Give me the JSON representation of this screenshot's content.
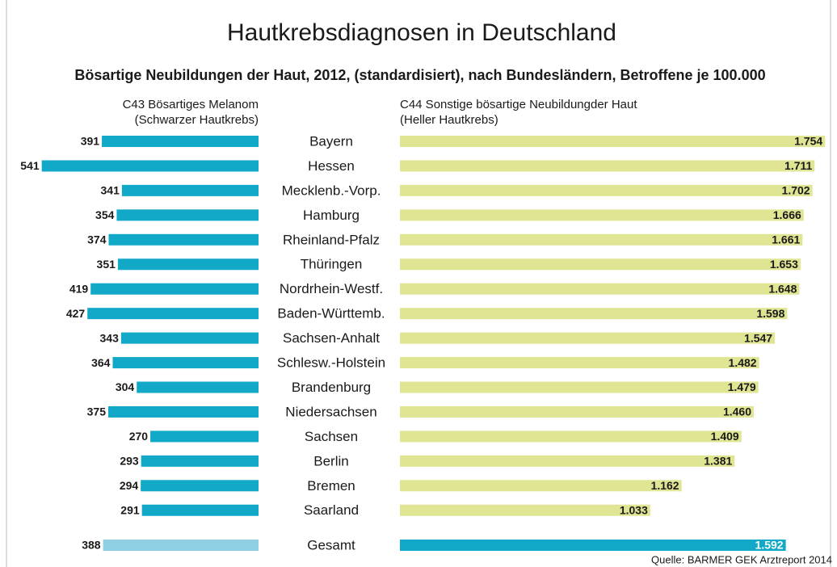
{
  "chart_data": {
    "type": "butterfly-bar",
    "title": "Hautkrebsdiagnosen in Deutschland",
    "subtitle": "Bösartige Neubildungen der Haut, 2012, (standardisiert), nach Bundesländern, Betroffene je 100.000",
    "categories": [
      "Bayern",
      "Hessen",
      "Mecklenb.-Vorp.",
      "Hamburg",
      "Rheinland-Pfalz",
      "Thüringen",
      "Nordrhein-Westf.",
      "Baden-Württemb.",
      "Sachsen-Anhalt",
      "Schlesw.-Holstein",
      "Brandenburg",
      "Niedersachsen",
      "Sachsen",
      "Berlin",
      "Bremen",
      "Saarland"
    ],
    "total_category": "Gesamt",
    "series": [
      {
        "name": "C43 Bösartiges Melanom",
        "name_sub": "(Schwarzer Hautkrebs)",
        "color": "#12a9c9",
        "total_color": "#8ed0e1",
        "values": [
          391,
          541,
          341,
          354,
          374,
          351,
          419,
          427,
          343,
          364,
          304,
          375,
          270,
          293,
          294,
          291
        ],
        "total": 388
      },
      {
        "name": "C44 Sonstige bösartige Neubildungder Haut",
        "name_sub": "(Heller Hautkrebs)",
        "color": "#dfe593",
        "total_color": "#12a9c9",
        "values": [
          1754,
          1711,
          1702,
          1666,
          1661,
          1653,
          1648,
          1598,
          1547,
          1482,
          1479,
          1460,
          1409,
          1381,
          1162,
          1033
        ],
        "value_labels": [
          "1.754",
          "1.711",
          "1.702",
          "1.666",
          "1.661",
          "1.653",
          "1.648",
          "1.598",
          "1.547",
          "1.482",
          "1.479",
          "1.460",
          "1.409",
          "1.381",
          "1.162",
          "1.033"
        ],
        "total": 1592,
        "total_label": "1.592"
      }
    ],
    "source": "Quelle: BARMER GEK Arztreport 2014"
  }
}
